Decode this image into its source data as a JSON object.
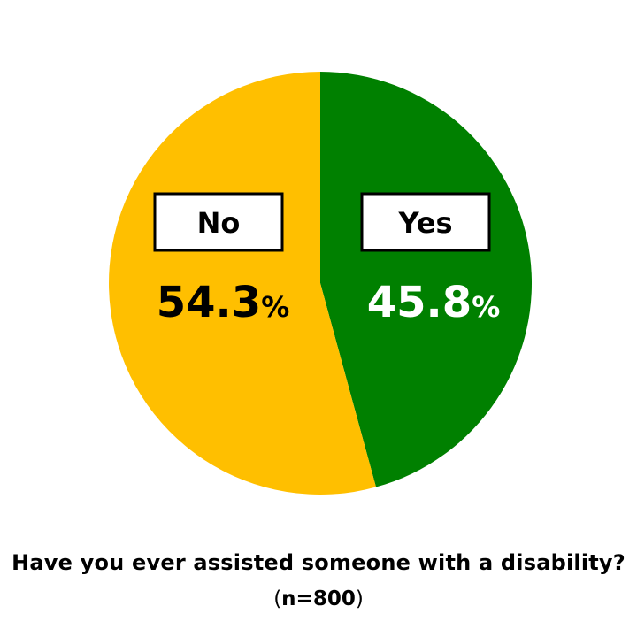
{
  "chart_data": {
    "type": "pie",
    "categories": [
      "Yes",
      "No"
    ],
    "values": [
      45.8,
      54.3
    ],
    "value_labels": [
      "45.8%",
      "54.3%"
    ],
    "colors": [
      "#008000",
      "#FFBF00"
    ],
    "label_colors": [
      "#ffffff",
      "#000000"
    ],
    "start": "12 o'clock",
    "direction": "clockwise",
    "title": "Have you ever assisted someone with a disability?",
    "subtitle": "(n=800)"
  },
  "caption": {
    "title": "Have you ever assisted someone with a disability?",
    "n_open": "(",
    "n_text": "n=800",
    "n_close": ")"
  }
}
